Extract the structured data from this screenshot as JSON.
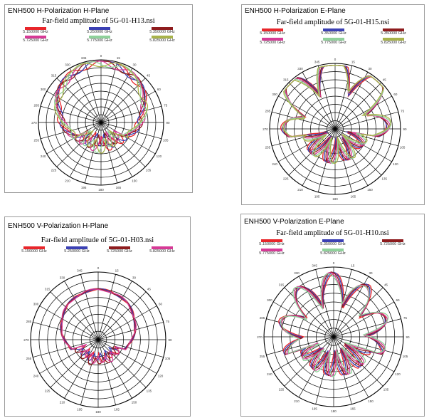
{
  "colors": {
    "red": "#e8262b",
    "blue": "#3b40b4",
    "darkred": "#8e1c1e",
    "magenta": "#d63a96",
    "lightgreen": "#8fd19a",
    "olive": "#a8b34a",
    "grid": "#000000"
  },
  "chart_data": [
    {
      "type": "polar",
      "panel_title": "ENH500 H-Polarization H-Plane",
      "title": "Far-field amplitude of 5G-01-H13.nsi",
      "angular_ticks": [
        "0",
        "15",
        "30",
        "45",
        "60",
        "75",
        "90",
        "105",
        "120",
        "135",
        "150",
        "165",
        "180",
        "195",
        "210",
        "225",
        "240",
        "255",
        "270",
        "285",
        "300",
        "315",
        "330",
        "345"
      ],
      "series": [
        {
          "name": "5.150000 GHz",
          "color": "red",
          "pattern": "h13"
        },
        {
          "name": "5.250000 GHz",
          "color": "blue",
          "pattern": "h13"
        },
        {
          "name": "5.350000 GHz",
          "color": "darkred",
          "pattern": "h13"
        },
        {
          "name": "5.725000 GHz",
          "color": "magenta",
          "pattern": "h13"
        },
        {
          "name": "5.775000 GHz",
          "color": "lightgreen",
          "pattern": "h13"
        },
        {
          "name": "5.825000 GHz",
          "color": "olive",
          "pattern": "h13"
        }
      ]
    },
    {
      "type": "polar",
      "panel_title": "ENH500 H-Polarization E-Plane",
      "title": "Far-field amplitude of 5G-01-H15.nsi",
      "angular_ticks": [
        "0",
        "15",
        "30",
        "45",
        "60",
        "75",
        "90",
        "105",
        "120",
        "135",
        "150",
        "165",
        "180",
        "195",
        "210",
        "225",
        "240",
        "255",
        "270",
        "285",
        "300",
        "315",
        "330",
        "345"
      ],
      "series": [
        {
          "name": "5.150000 GHz",
          "color": "red",
          "pattern": "h15"
        },
        {
          "name": "5.350000 GHz",
          "color": "blue",
          "pattern": "h15"
        },
        {
          "name": "5.350000 GHz",
          "color": "darkred",
          "pattern": "h15"
        },
        {
          "name": "5.725000 GHz",
          "color": "magenta",
          "pattern": "h15"
        },
        {
          "name": "5.775000 GHz",
          "color": "lightgreen",
          "pattern": "h15"
        },
        {
          "name": "5.825000 GHz",
          "color": "olive",
          "pattern": "h15"
        }
      ]
    },
    {
      "type": "polar",
      "panel_title": "ENH500 V-Polarization H-Plane",
      "title": "Far-field amplitude of 5G-01-H03.nsi",
      "angular_ticks": [
        "0",
        "15",
        "30",
        "45",
        "60",
        "75",
        "90",
        "105",
        "120",
        "135",
        "150",
        "165",
        "180",
        "195",
        "210",
        "225",
        "240",
        "255",
        "270",
        "285",
        "300",
        "315",
        "330",
        "345"
      ],
      "series": [
        {
          "name": "5.150000 GHz",
          "color": "red",
          "pattern": "h03"
        },
        {
          "name": "5.250000 GHz",
          "color": "blue",
          "pattern": "h03"
        },
        {
          "name": "5.725000 GHz",
          "color": "darkred",
          "pattern": "h03"
        },
        {
          "name": "5.825000 GHz",
          "color": "magenta",
          "pattern": "h03"
        }
      ]
    },
    {
      "type": "polar",
      "panel_title": "ENH500 V-Polarization E-Plane",
      "title": "Far-field amplitude of 5G-01-H10.nsi",
      "angular_ticks": [
        "0",
        "15",
        "30",
        "45",
        "60",
        "75",
        "90",
        "105",
        "120",
        "135",
        "150",
        "165",
        "180",
        "195",
        "210",
        "225",
        "240",
        "255",
        "270",
        "285",
        "300",
        "315",
        "330",
        "345"
      ],
      "series": [
        {
          "name": "5.150000 GHz",
          "color": "red",
          "pattern": "h10"
        },
        {
          "name": "5.350000 GHz",
          "color": "blue",
          "pattern": "h10"
        },
        {
          "name": "5.725000 GHz",
          "color": "darkred",
          "pattern": "h10"
        },
        {
          "name": "5.775000 GHz",
          "color": "magenta",
          "pattern": "h10"
        },
        {
          "name": "5.825000 GHz",
          "color": "lightgreen",
          "pattern": "h10"
        }
      ]
    }
  ]
}
